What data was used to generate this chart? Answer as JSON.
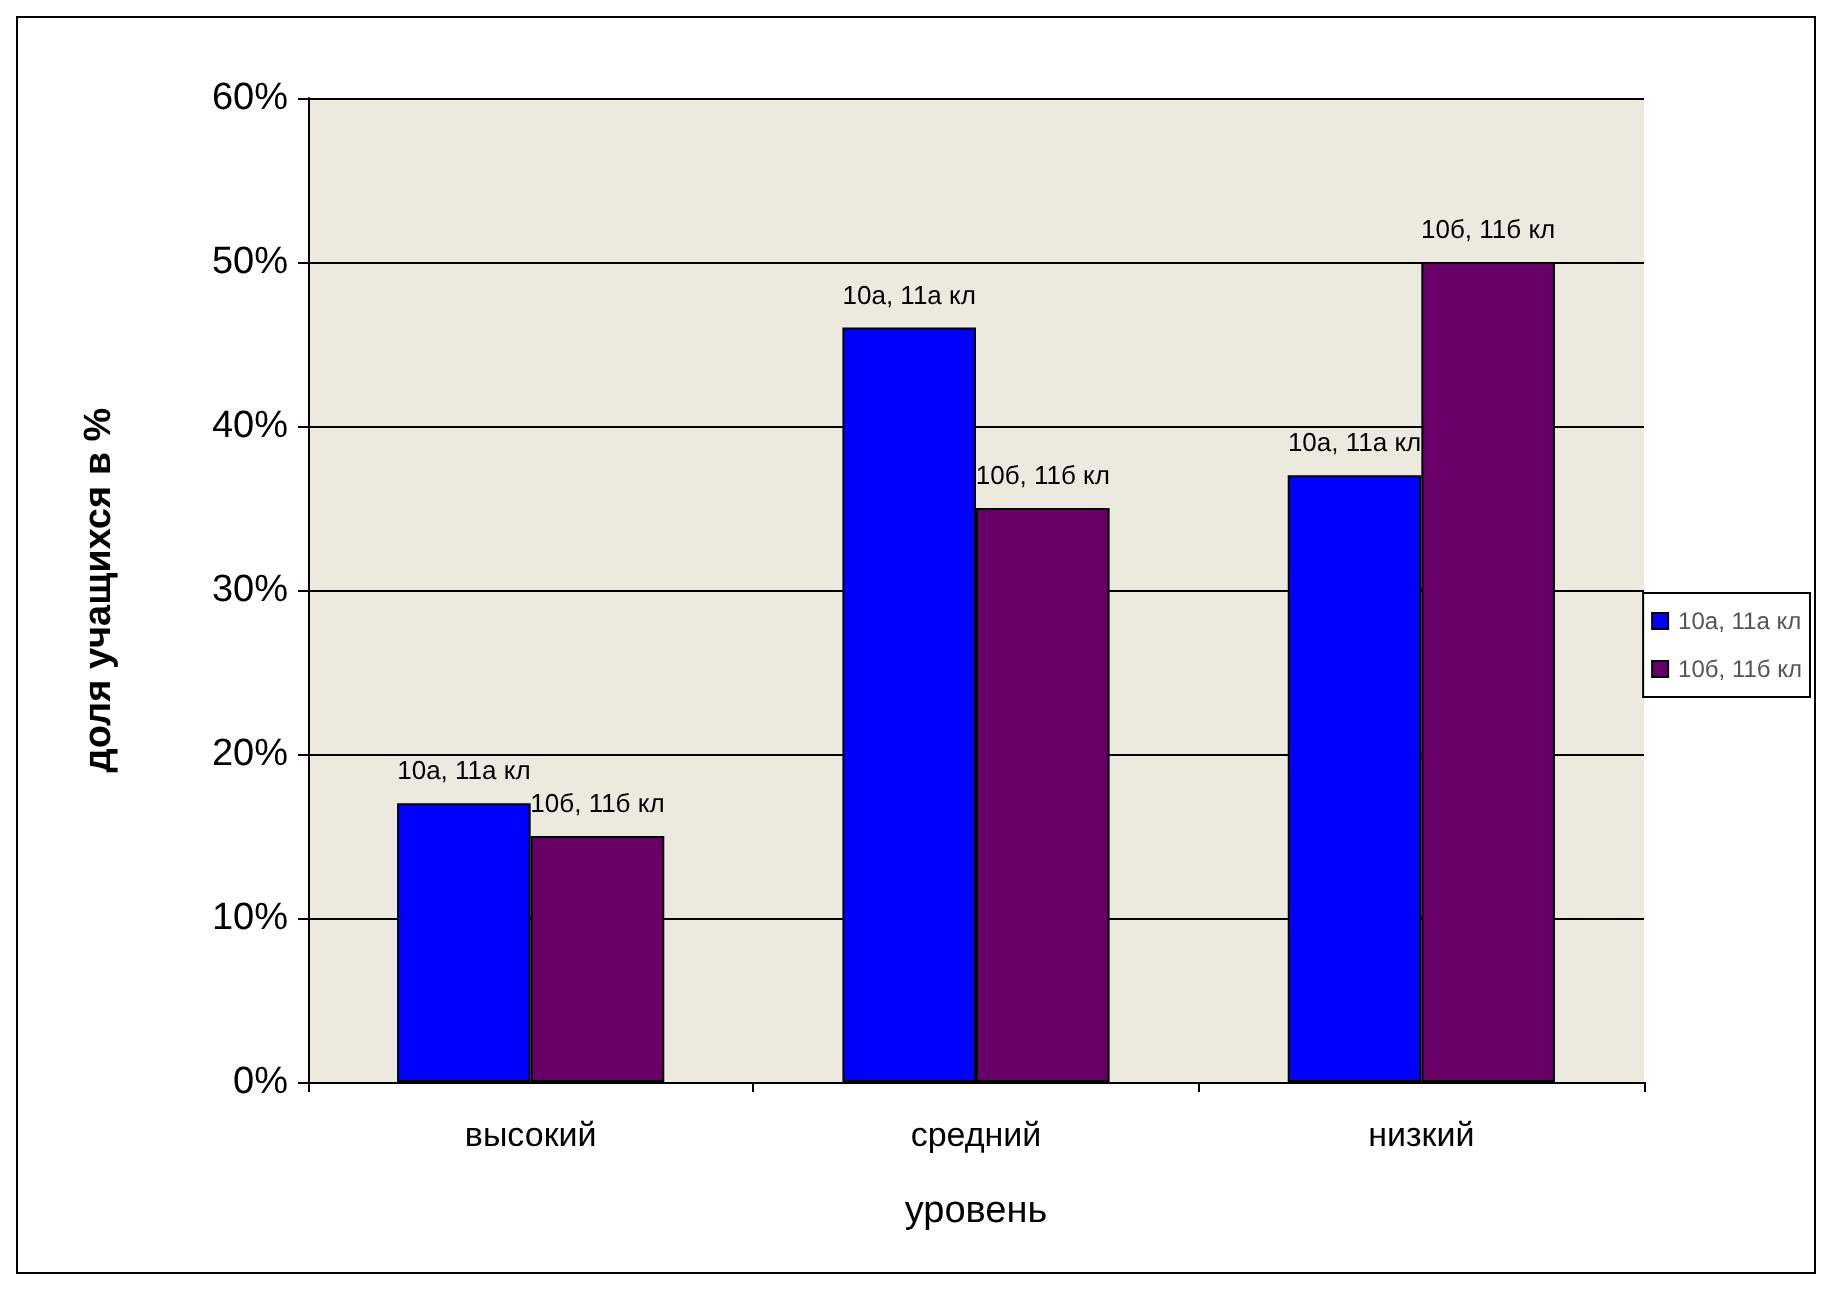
{
  "chart_data": {
    "type": "bar",
    "xlabel": "уровень",
    "ylabel": "доля учащихся в %",
    "categories": [
      "высокий",
      "средний",
      "низкий"
    ],
    "series": [
      {
        "name": "10а, 11а кл",
        "color": "#0000ff",
        "values": [
          17,
          46,
          37
        ]
      },
      {
        "name": "10б, 11б кл",
        "color": "#660066",
        "values": [
          15,
          35,
          50
        ]
      }
    ],
    "annotations": [
      {
        "text": "10а, 11а кл",
        "x": "высокий",
        "y": 17
      },
      {
        "text": "10б, 11б кл",
        "x": "высокий",
        "y": 15
      },
      {
        "text": "10а, 11а кл",
        "x": "средний",
        "y": 46
      },
      {
        "text": "10б, 11б кл",
        "x": "средний",
        "y": 35
      },
      {
        "text": "10а, 11а кл",
        "x": "низкий",
        "y": 37
      },
      {
        "text": "10б, 11б кл",
        "x": "низкий",
        "y": 50
      }
    ],
    "ylim": [
      0,
      60
    ],
    "yticks": [
      {
        "value": 0,
        "label": "0%"
      },
      {
        "value": 10,
        "label": "10%"
      },
      {
        "value": 20,
        "label": "20%"
      },
      {
        "value": 30,
        "label": "30%"
      },
      {
        "value": 40,
        "label": "40%"
      },
      {
        "value": 50,
        "label": "50%"
      },
      {
        "value": 60,
        "label": "60%"
      }
    ],
    "grid": "y",
    "legend": "right"
  }
}
